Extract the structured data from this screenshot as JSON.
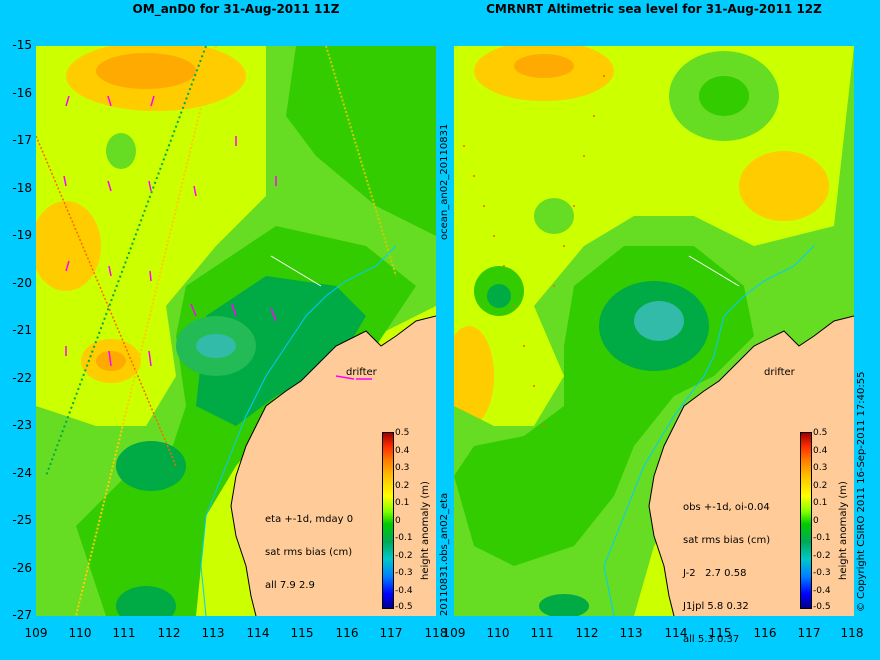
{
  "panels": [
    {
      "title": "OM_anD0 for 31-Aug-2011 11Z",
      "drifter_label": "drifter",
      "stats_lines": [
        "eta +-1d, mday 0",
        "sat rms bias (cm)",
        "all 7.9 2.9"
      ],
      "side_label": "20110831.obs_an02_eta"
    },
    {
      "title": "CMRNRT Altimetric sea level  for 31-Aug-2011 12Z",
      "drifter_label": "drifter",
      "stats_lines": [
        "obs +-1d, oi-0.04",
        "sat rms bias (cm)",
        "J-2   2.7 0.58",
        "J1jpl 5.8 0.32",
        "all 5.3 0.37"
      ],
      "side_label": "ocean_an02_20110831"
    }
  ],
  "axes": {
    "x_ticks": [
      "109",
      "110",
      "111",
      "112",
      "113",
      "114",
      "115",
      "116",
      "117",
      "118"
    ],
    "y_ticks": [
      "-15",
      "-16",
      "-17",
      "-18",
      "-19",
      "-20",
      "-21",
      "-22",
      "-23",
      "-24",
      "-25",
      "-26",
      "-27"
    ]
  },
  "colorbar": {
    "label": "height anomaly (m)",
    "ticks": [
      "0.5",
      "0.4",
      "0.3",
      "0.2",
      "0.1",
      "0",
      "-0.1",
      "-0.2",
      "-0.3",
      "-0.4",
      "-0.5"
    ]
  },
  "copyright": "© Copyright CSIRO 2011   16-Sep-2011 17:40:55",
  "colors": {
    "background": "#00ccff",
    "land": "#ffcc99",
    "yellow": "#ccff00",
    "green": "#33cc00",
    "dark_green": "#00aa44",
    "orange": "#ffaa00",
    "arrows": "#ff00ff"
  }
}
